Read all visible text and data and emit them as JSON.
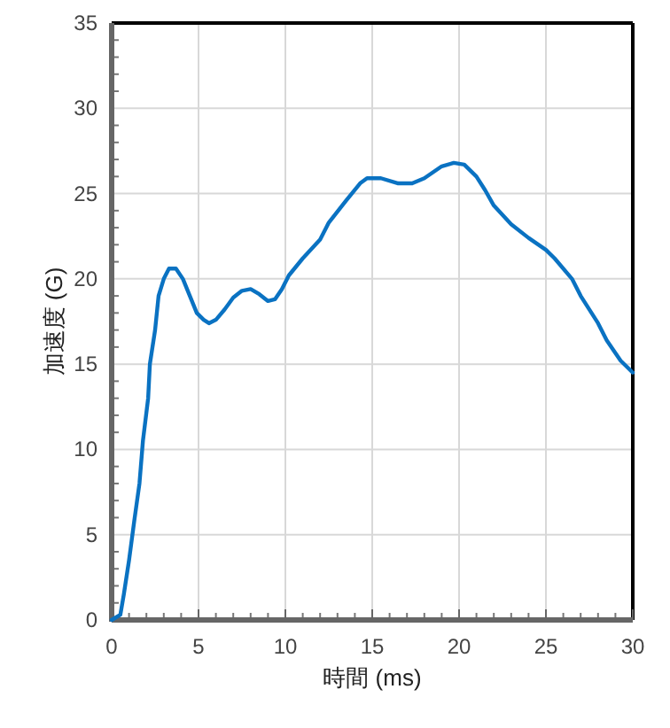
{
  "chart_data": {
    "type": "line",
    "xlabel": "時間 (ms)",
    "ylabel": "加速度 (G)",
    "x": [
      0,
      0.5,
      0.7,
      1,
      1.3,
      1.6,
      1.8,
      2.1,
      2.2,
      2.5,
      2.7,
      3,
      3.3,
      3.7,
      4.1,
      4.5,
      4.9,
      5.3,
      5.6,
      6,
      6.5,
      7,
      7.5,
      8,
      8.5,
      9,
      9.4,
      9.8,
      10.2,
      11,
      12,
      12.5,
      13.5,
      14.3,
      14.7,
      15.5,
      16.5,
      17.3,
      18,
      19,
      19.7,
      20.3,
      21,
      21.5,
      22,
      23,
      24,
      25,
      25.5,
      26.5,
      27,
      28,
      28.5,
      29.3,
      30
    ],
    "series": [
      {
        "color": "#0a72c2",
        "values": [
          0,
          0.3,
          1.5,
          3.5,
          5.8,
          8,
          10.5,
          13,
          15,
          17,
          19,
          20,
          20.6,
          20.6,
          20,
          19,
          18,
          17.6,
          17.4,
          17.6,
          18.2,
          18.9,
          19.3,
          19.4,
          19.1,
          18.7,
          18.8,
          19.4,
          20.2,
          21.2,
          22.3,
          23.3,
          24.6,
          25.6,
          25.9,
          25.9,
          25.6,
          25.6,
          25.9,
          26.6,
          26.8,
          26.7,
          26,
          25.2,
          24.3,
          23.2,
          22.4,
          21.7,
          21.2,
          20,
          19,
          17.4,
          16.4,
          15.2,
          14.5
        ]
      }
    ],
    "xlim": [
      0,
      30
    ],
    "ylim": [
      0,
      35
    ],
    "xticks": [
      0,
      5,
      10,
      15,
      20,
      25,
      30
    ],
    "yticks": [
      0,
      5,
      10,
      15,
      20,
      25,
      30,
      35
    ],
    "grid": true
  }
}
